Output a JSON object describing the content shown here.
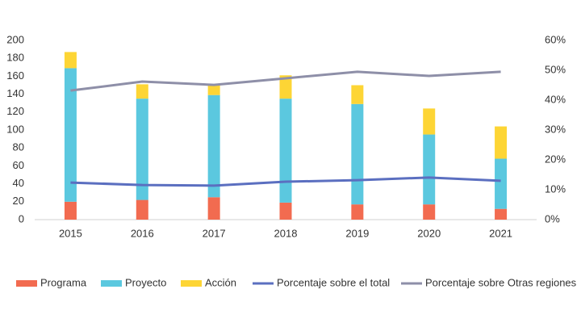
{
  "chart_data": {
    "type": "bar",
    "stacked": true,
    "categories": [
      "2015",
      "2016",
      "2017",
      "2018",
      "2019",
      "2020",
      "2021"
    ],
    "series": [
      {
        "name": "Programa",
        "type": "bar",
        "color": "#f26b50",
        "values": [
          20,
          22,
          25,
          19,
          17,
          17,
          12
        ]
      },
      {
        "name": "Proyecto",
        "type": "bar",
        "color": "#5bc8df",
        "values": [
          149,
          113,
          114,
          116,
          112,
          78,
          56
        ]
      },
      {
        "name": "Acción",
        "type": "bar",
        "color": "#fdd535",
        "values": [
          18,
          16,
          11,
          26,
          21,
          29,
          36
        ]
      },
      {
        "name": "Porcentaje sobre el total",
        "type": "line",
        "axis": "y2",
        "color": "#5b6fc0",
        "values": [
          12.4,
          11.6,
          11.4,
          12.7,
          13.2,
          14.1,
          13.0
        ]
      },
      {
        "name": "Porcentaje sobre Otras regiones",
        "type": "line",
        "axis": "y2",
        "color": "#8e8fa8",
        "values": [
          43.2,
          46.2,
          45.1,
          47.3,
          49.5,
          48.1,
          49.5
        ]
      }
    ],
    "ylim": [
      0,
      200
    ],
    "yticks": [
      0,
      20,
      40,
      60,
      80,
      100,
      120,
      140,
      160,
      180,
      200
    ],
    "y2lim": [
      0,
      60
    ],
    "y2ticks": [
      {
        "value": 0,
        "label": "0%"
      },
      {
        "value": 10,
        "label": "10%"
      },
      {
        "value": 20,
        "label": "20%"
      },
      {
        "value": 30,
        "label": "30%"
      },
      {
        "value": 40,
        "label": "40%"
      },
      {
        "value": 50,
        "label": "50%"
      },
      {
        "value": 60,
        "label": "60%"
      }
    ],
    "legend": "bottom"
  }
}
